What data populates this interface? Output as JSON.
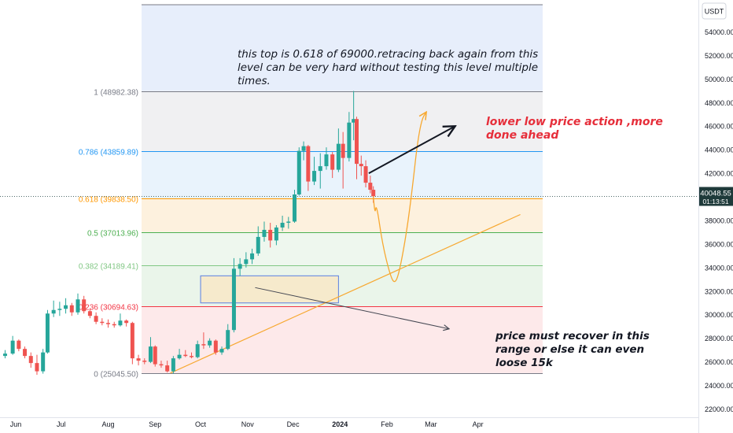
{
  "chart_data": {
    "type": "candlestick",
    "quote_currency": "USDT",
    "current_price": "40048.55",
    "countdown": "01:13:51",
    "price_axis_ticks": [
      "22000.00",
      "24000.00",
      "26000.00",
      "28000.00",
      "30000.00",
      "32000.00",
      "34000.00",
      "36000.00",
      "38000.00",
      "40000.00",
      "42000.00",
      "44000.00",
      "46000.00",
      "48000.00",
      "50000.00",
      "52000.00",
      "54000.00"
    ],
    "price_axis_range": [
      21300,
      56700
    ],
    "time_axis_labels": [
      "Jun",
      "Jul",
      "Aug",
      "Sep",
      "Oct",
      "Nov",
      "Dec",
      "2024",
      "Feb",
      "Mar",
      "Apr"
    ],
    "fib_levels": [
      {
        "ratio": 0,
        "label": "0 (25045.50)",
        "price": 25045.5,
        "color": "#787b86",
        "fill": "#fde9ea"
      },
      {
        "ratio": 0.236,
        "label": "0.236 (30694.63)",
        "price": 30694.63,
        "color": "#f23645",
        "fill": "#eaf5ea"
      },
      {
        "ratio": 0.382,
        "label": "0.382 (34189.41)",
        "price": 34189.41,
        "color": "#81c784",
        "fill": "#eef7ee"
      },
      {
        "ratio": 0.5,
        "label": "0.5 (37013.96)",
        "price": 37013.96,
        "color": "#4caf50",
        "fill": "#fdf1de"
      },
      {
        "ratio": 0.618,
        "label": "0.618 (39838.50)",
        "price": 39838.5,
        "color": "#ff9800",
        "fill": "#e9f3fc"
      },
      {
        "ratio": 0.786,
        "label": "0.786 (43859.89)",
        "price": 43859.89,
        "color": "#2196f3",
        "fill": "#f0f0f2"
      },
      {
        "ratio": 1,
        "label": "1 (48982.38)",
        "price": 48982.38,
        "color": "#787b86",
        "fill": "#e7eefb"
      }
    ],
    "candles": [
      [
        "2023-05-25",
        26500,
        27000,
        26300,
        26700
      ],
      [
        "2023-05-30",
        26700,
        28200,
        26600,
        27800
      ],
      [
        "2023-06-03",
        27800,
        27900,
        26900,
        27100
      ],
      [
        "2023-06-07",
        27100,
        27300,
        26300,
        26500
      ],
      [
        "2023-06-11",
        26500,
        26800,
        25500,
        25900
      ],
      [
        "2023-06-15",
        25900,
        26600,
        24900,
        25200
      ],
      [
        "2023-06-19",
        25200,
        27100,
        25000,
        26800
      ],
      [
        "2023-06-22",
        26800,
        30400,
        26700,
        30100
      ],
      [
        "2023-06-26",
        30100,
        31200,
        29800,
        30400
      ],
      [
        "2023-06-30",
        30400,
        31100,
        29900,
        30500
      ],
      [
        "2023-07-04",
        30500,
        31400,
        30100,
        30800
      ],
      [
        "2023-07-08",
        30800,
        31000,
        29900,
        30200
      ],
      [
        "2023-07-12",
        30200,
        31800,
        30000,
        31300
      ],
      [
        "2023-07-16",
        31300,
        31600,
        30100,
        30300
      ],
      [
        "2023-07-20",
        30300,
        30500,
        29700,
        29900
      ],
      [
        "2023-07-24",
        29900,
        30200,
        29200,
        29400
      ],
      [
        "2023-07-28",
        29400,
        29700,
        29100,
        29300
      ],
      [
        "2023-08-01",
        29300,
        29600,
        28900,
        29200
      ],
      [
        "2023-08-05",
        29200,
        29400,
        28900,
        29100
      ],
      [
        "2023-08-09",
        29100,
        30100,
        29000,
        29500
      ],
      [
        "2023-08-13",
        29500,
        29600,
        29000,
        29300
      ],
      [
        "2023-08-17",
        29300,
        29400,
        25800,
        26300
      ],
      [
        "2023-08-21",
        26300,
        26600,
        25700,
        26100
      ],
      [
        "2023-08-25",
        26100,
        26300,
        25800,
        26000
      ],
      [
        "2023-08-29",
        26000,
        28100,
        25900,
        27300
      ],
      [
        "2023-09-01",
        27300,
        27400,
        25600,
        25800
      ],
      [
        "2023-09-05",
        25800,
        26100,
        25500,
        25700
      ],
      [
        "2023-09-09",
        25700,
        26100,
        25100,
        25200
      ],
      [
        "2023-09-13",
        25200,
        26500,
        25000,
        26300
      ],
      [
        "2023-09-17",
        26300,
        27100,
        26200,
        26600
      ],
      [
        "2023-09-21",
        26600,
        27000,
        26400,
        26500
      ],
      [
        "2023-09-25",
        26500,
        26800,
        26300,
        26400
      ],
      [
        "2023-09-29",
        26400,
        27800,
        26300,
        27500
      ],
      [
        "2023-10-03",
        27500,
        28500,
        27100,
        27400
      ],
      [
        "2023-10-07",
        27400,
        28000,
        27200,
        27800
      ],
      [
        "2023-10-11",
        27800,
        27900,
        26600,
        26800
      ],
      [
        "2023-10-15",
        26800,
        27300,
        26600,
        27100
      ],
      [
        "2023-10-19",
        27100,
        29200,
        27000,
        28700
      ],
      [
        "2023-10-23",
        28700,
        34800,
        28500,
        33900
      ],
      [
        "2023-10-27",
        33900,
        34800,
        33300,
        34300
      ],
      [
        "2023-10-31",
        34300,
        35300,
        34000,
        34700
      ],
      [
        "2023-11-04",
        34700,
        35600,
        34300,
        35200
      ],
      [
        "2023-11-08",
        35200,
        37500,
        35000,
        36600
      ],
      [
        "2023-11-12",
        36600,
        37900,
        36200,
        37200
      ],
      [
        "2023-11-16",
        37200,
        37800,
        35700,
        36300
      ],
      [
        "2023-11-20",
        36300,
        37600,
        35900,
        37400
      ],
      [
        "2023-11-24",
        37400,
        38400,
        37100,
        37800
      ],
      [
        "2023-11-28",
        37800,
        38300,
        37300,
        37900
      ],
      [
        "2023-12-02",
        37900,
        40600,
        37800,
        40200
      ],
      [
        "2023-12-05",
        40200,
        44200,
        40100,
        43900
      ],
      [
        "2023-12-08",
        43900,
        44700,
        43100,
        44300
      ],
      [
        "2023-12-11",
        44300,
        44400,
        40500,
        41300
      ],
      [
        "2023-12-15",
        41300,
        43400,
        41000,
        42200
      ],
      [
        "2023-12-19",
        42200,
        43700,
        40700,
        42600
      ],
      [
        "2023-12-23",
        42600,
        44200,
        42300,
        43600
      ],
      [
        "2023-12-27",
        43600,
        43800,
        41600,
        42300
      ],
      [
        "2023-12-31",
        42300,
        45800,
        42100,
        44500
      ],
      [
        "2024-01-03",
        44500,
        45500,
        40700,
        43300
      ],
      [
        "2024-01-07",
        43300,
        47200,
        43000,
        46300
      ],
      [
        "2024-01-10",
        46300,
        48982,
        44800,
        46600
      ],
      [
        "2024-01-12",
        46600,
        46800,
        41500,
        42800
      ],
      [
        "2024-01-15",
        42800,
        43500,
        41800,
        42600
      ],
      [
        "2024-01-18",
        42600,
        43100,
        40800,
        41200
      ],
      [
        "2024-01-21",
        41200,
        41800,
        40300,
        40600
      ],
      [
        "2024-01-23",
        40600,
        40900,
        39500,
        40048.55
      ]
    ],
    "projection_path": [
      [
        "2024-01-23",
        40048
      ],
      [
        "2024-01-24",
        38400
      ],
      [
        "2024-01-25",
        39500
      ],
      [
        "2024-01-29",
        36000
      ],
      [
        "2024-02-03",
        33400
      ],
      [
        "2024-02-06",
        32600
      ],
      [
        "2024-02-09",
        33500
      ],
      [
        "2024-02-14",
        37000
      ],
      [
        "2024-02-18",
        41000
      ],
      [
        "2024-02-21",
        44500
      ],
      [
        "2024-02-24",
        46600
      ],
      [
        "2024-02-27",
        47200
      ]
    ],
    "trendline": [
      [
        "2023-09-11",
        25045.5
      ],
      [
        "2024-04-29",
        38500
      ]
    ],
    "arrow_right": [
      [
        "2024-01-20",
        42000
      ],
      [
        "2024-03-17",
        46000
      ]
    ],
    "arrow_down": [
      [
        "2023-11-06",
        32300
      ],
      [
        "2024-03-13",
        28800
      ]
    ],
    "recovery_box": {
      "x0": "2023-10-01",
      "x1": "2023-12-31",
      "y_low": 31000,
      "y_high": 33300
    },
    "annotations": {
      "top": "this top is 0.618 of 69000.retracing back again from this level can be very hard without testing this level multiple times.",
      "right": "lower low price action ,more done ahead",
      "bottom": "price must recover in this range or else it can even loose 15k"
    }
  }
}
